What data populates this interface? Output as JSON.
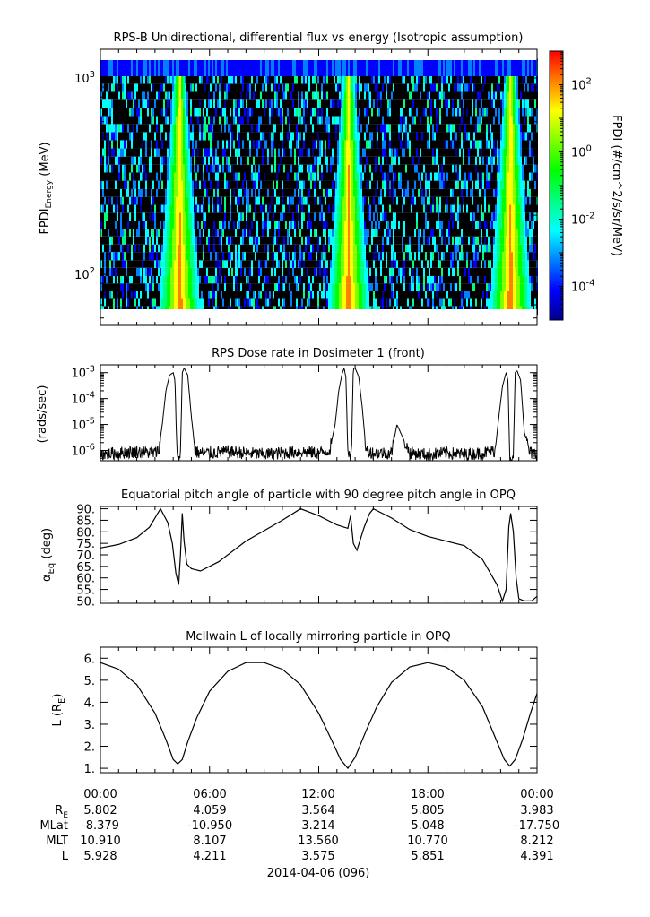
{
  "chart_data": [
    {
      "type": "heatmap",
      "title": "RPS-B  Unidirectional, differential flux vs energy (Isotropic assumption)",
      "ylabel": "FPDI",
      "ylabel_sub": "Energy",
      "ylabel_unit": "(MeV)",
      "y_scale": "log",
      "ylim": [
        55,
        1400
      ],
      "y_ticks": [
        {
          "value": 100,
          "base": "10",
          "exp": "2"
        },
        {
          "value": 1000,
          "base": "10",
          "exp": "3"
        }
      ],
      "xlim_hours": [
        0,
        24
      ],
      "colorbar": {
        "label": "FPDI (#/cm^2/s/sr/MeV)",
        "scale": "log",
        "range": [
          1e-05,
          1000
        ],
        "ticks": [
          {
            "value": 0.0001,
            "base": "10",
            "exp": "-4"
          },
          {
            "value": 0.01,
            "base": "10",
            "exp": "-2"
          },
          {
            "value": 1,
            "base": "10",
            "exp": "0"
          },
          {
            "value": 100,
            "base": "10",
            "exp": "2"
          }
        ],
        "colors": [
          "#00008b",
          "#0000ff",
          "#0080ff",
          "#00ffff",
          "#00ff80",
          "#00ff00",
          "#80ff00",
          "#ffff00",
          "#ff8000",
          "#ff0000"
        ]
      },
      "belt_passes_hours": [
        4.3,
        13.6,
        22.5
      ],
      "energy_channels_mev": [
        58,
        63,
        69,
        75,
        82,
        90,
        98,
        108,
        118,
        130,
        142,
        156,
        171,
        188,
        206,
        226,
        248,
        272,
        300,
        330,
        362,
        398,
        438,
        482,
        530,
        583,
        640,
        705,
        775,
        850,
        935,
        1030,
        1130,
        1250
      ]
    },
    {
      "type": "line",
      "title": "RPS  Dose rate in Dosimeter 1 (front)",
      "ylabel": "(rads/sec)",
      "y_scale": "log",
      "ylim": [
        4e-07,
        0.002
      ],
      "y_ticks": [
        {
          "value": 1e-06,
          "base": "10",
          "exp": "-6"
        },
        {
          "value": 1e-05,
          "base": "10",
          "exp": "-5"
        },
        {
          "value": 0.0001,
          "base": "10",
          "exp": "-4"
        },
        {
          "value": 0.001,
          "base": "10",
          "exp": "-3"
        }
      ],
      "xlim_hours": [
        0,
        24
      ],
      "x_hours": [
        0,
        1,
        2,
        3,
        3.2,
        3.4,
        3.6,
        3.8,
        4.0,
        4.1,
        4.2,
        4.3,
        4.4,
        4.5,
        4.6,
        4.8,
        5.0,
        5.2,
        5.4,
        6,
        7,
        8,
        9,
        10,
        11,
        12,
        12.6,
        12.9,
        13.1,
        13.3,
        13.4,
        13.5,
        13.6,
        13.7,
        13.8,
        13.9,
        14.0,
        14.2,
        14.4,
        14.6,
        15,
        16,
        16.3,
        17,
        18,
        19,
        20,
        21,
        21.7,
        21.9,
        22.1,
        22.3,
        22.4,
        22.5,
        22.6,
        22.7,
        22.8,
        22.9,
        23.1,
        23.3,
        23.6,
        24
      ],
      "values": [
        7e-07,
        8e-07,
        9e-07,
        8e-07,
        1e-06,
        1e-05,
        0.0002,
        0.0008,
        0.001,
        0.0005,
        8e-07,
        5e-07,
        8e-07,
        0.001,
        0.0015,
        0.0008,
        2e-05,
        1e-06,
        8e-07,
        8e-07,
        9e-07,
        8e-07,
        7e-07,
        8e-07,
        9e-07,
        8e-07,
        1e-06,
        1e-05,
        0.0002,
        0.001,
        0.0015,
        0.0006,
        7e-07,
        5e-07,
        8e-07,
        0.0014,
        0.0015,
        0.0007,
        4e-05,
        1e-06,
        8e-07,
        8e-07,
        1e-05,
        8e-07,
        7e-07,
        8e-07,
        7e-07,
        8e-07,
        1e-06,
        2e-05,
        0.0003,
        0.001,
        0.0005,
        6e-07,
        5e-07,
        8e-07,
        0.001,
        0.0012,
        0.0005,
        5e-06,
        8e-07,
        7e-07
      ]
    },
    {
      "type": "line",
      "title": "Equatorial pitch angle of particle with 90 degree pitch angle in OPQ",
      "ylabel": "α",
      "ylabel_sub": "Eq",
      "ylabel_unit": "(deg)",
      "ylim": [
        49,
        91
      ],
      "y_ticks": [
        50,
        55,
        60,
        65,
        70,
        75,
        80,
        85,
        90
      ],
      "y_tick_labels": [
        "50.",
        "55.",
        "60.",
        "65.",
        "70.",
        "75.",
        "80.",
        "85.",
        "90."
      ],
      "xlim_hours": [
        0,
        24
      ],
      "x_hours": [
        0,
        1,
        2,
        2.7,
        3.3,
        3.7,
        3.95,
        4.15,
        4.3,
        4.4,
        4.5,
        4.6,
        4.75,
        5.0,
        5.5,
        6.5,
        8,
        10,
        11,
        12,
        13,
        13.6,
        13.75,
        13.9,
        14.1,
        14.5,
        14.8,
        15,
        16,
        17,
        18,
        19,
        20,
        21,
        21.8,
        22.1,
        22.3,
        22.45,
        22.55,
        22.7,
        22.85,
        23.0,
        23.3,
        23.7,
        24
      ],
      "values": [
        73,
        74.5,
        77.5,
        82,
        90,
        84,
        75,
        62,
        57,
        70,
        88,
        76,
        66,
        64,
        63,
        67,
        76,
        85,
        90,
        87,
        83,
        81.5,
        87,
        75,
        72,
        82,
        88,
        90,
        86,
        81,
        78,
        76,
        74,
        68,
        57,
        50,
        55,
        82,
        88,
        80,
        60,
        51,
        50,
        50,
        52
      ]
    },
    {
      "type": "line",
      "title": "McIlwain L of locally mirroring particle in OPQ",
      "ylabel": "L (R",
      "ylabel_sub": "E",
      "ylabel_unit": ")",
      "ylim": [
        0.8,
        6.5
      ],
      "y_ticks": [
        1,
        2,
        3,
        4,
        5,
        6
      ],
      "y_tick_labels": [
        "1.",
        "2.",
        "3.",
        "4.",
        "5.",
        "6."
      ],
      "xlim_hours": [
        0,
        24
      ],
      "x_hours": [
        0,
        1,
        2,
        3,
        3.6,
        4.0,
        4.25,
        4.5,
        4.8,
        5.3,
        6,
        7,
        8,
        9,
        10,
        11,
        12,
        12.7,
        13.2,
        13.6,
        14.0,
        14.6,
        15.2,
        16,
        17,
        18,
        19,
        20,
        21,
        21.8,
        22.2,
        22.5,
        22.8,
        23.2,
        23.6,
        24
      ],
      "values": [
        5.8,
        5.5,
        4.8,
        3.5,
        2.3,
        1.4,
        1.2,
        1.4,
        2.2,
        3.3,
        4.5,
        5.4,
        5.8,
        5.8,
        5.5,
        4.8,
        3.5,
        2.3,
        1.4,
        1.0,
        1.5,
        2.7,
        3.8,
        4.9,
        5.6,
        5.8,
        5.6,
        5.0,
        3.8,
        2.2,
        1.4,
        1.1,
        1.4,
        2.3,
        3.4,
        4.4
      ]
    }
  ],
  "ephemeris": {
    "x_ticks": [
      "00:00",
      "06:00",
      "12:00",
      "18:00",
      "00:00"
    ],
    "rows": [
      {
        "label": "R",
        "sub": "E",
        "values": [
          "5.802",
          "4.059",
          "3.564",
          "5.805",
          "3.983"
        ]
      },
      {
        "label": "MLat",
        "sub": "",
        "values": [
          "-8.379",
          "-10.950",
          "3.214",
          "5.048",
          "-17.750"
        ]
      },
      {
        "label": "MLT",
        "sub": "",
        "values": [
          "10.910",
          "8.107",
          "13.560",
          "10.770",
          "8.212"
        ]
      },
      {
        "label": "L",
        "sub": "",
        "values": [
          "5.928",
          "4.211",
          "3.575",
          "5.851",
          "4.391"
        ]
      }
    ],
    "date": "2014-04-06 (096)"
  }
}
